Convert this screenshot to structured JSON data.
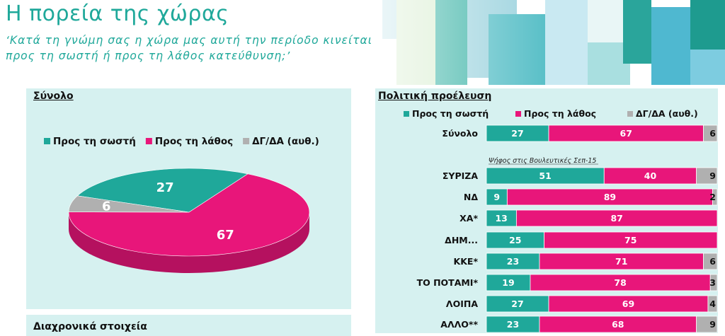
{
  "title": "Η πορεία της χώρας",
  "subtitle_line1": "‘Κατά τη γνώμη σας η χώρα μας αυτή την περίοδο κινείται",
  "subtitle_line2": "προς τη σωστή ή προς τη λάθος κατεύθυνση;’",
  "colors": {
    "right": "#1fa89a",
    "wrong": "#e8167a",
    "dk": "#b0b0b0",
    "panel": "#d6f1f0",
    "title": "#1fa89a"
  },
  "left_panel_title": "Σύνολο",
  "right_panel_title": "Πολιτική προέλευση",
  "bottom_panel_title": "Διαχρονικά στοιχεία",
  "vote_note": "Ψήφος στις Βουλευτικές Σεπ-15",
  "chart_data": [
    {
      "type": "pie",
      "categories": [
        "Προς τη σωστή",
        "Προς τη λάθος",
        "ΔΓ/ΔΑ (αυθ.)"
      ],
      "values": [
        27,
        67,
        6
      ],
      "legend": "top"
    },
    {
      "type": "bar",
      "orientation": "horizontal",
      "stacked": true,
      "categories": [
        "Σύνολο",
        "ΣΥΡΙΖΑ",
        "ΝΔ",
        "ΧΑ*",
        "ΔΗΜ...",
        "ΚΚΕ*",
        "ΤΟ ΠΟΤΑΜΙ*",
        "ΛΟΙΠΑ",
        "ΑΛΛΟ**"
      ],
      "series": [
        {
          "name": "Προς τη σωστή",
          "values": [
            27,
            51,
            9,
            13,
            25,
            23,
            19,
            27,
            23
          ]
        },
        {
          "name": "Προς τη λάθος",
          "values": [
            67,
            40,
            89,
            87,
            75,
            71,
            78,
            69,
            68
          ]
        },
        {
          "name": "ΔΓ/ΔΑ (αυθ.)",
          "values": [
            6,
            9,
            2,
            null,
            null,
            6,
            3,
            4,
            9
          ]
        }
      ],
      "legend": "top",
      "xlim": [
        0,
        100
      ]
    }
  ]
}
